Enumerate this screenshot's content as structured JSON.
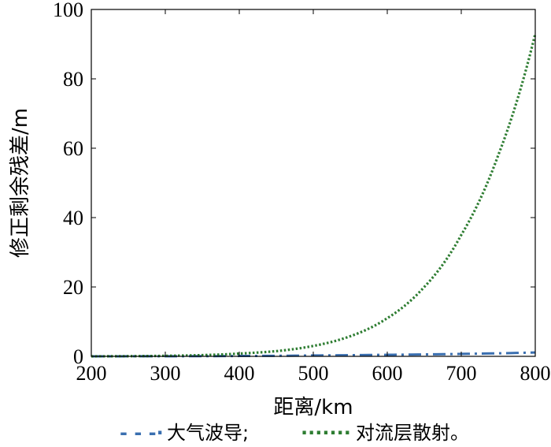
{
  "chart_data": {
    "type": "line",
    "xlabel": "距离/km",
    "ylabel": "修正剩余残差/m",
    "xlim": [
      200,
      800
    ],
    "ylim": [
      0,
      100
    ],
    "xticks": [
      "200",
      "300",
      "400",
      "500",
      "600",
      "700",
      "800"
    ],
    "yticks": [
      "0",
      "20",
      "40",
      "60",
      "80",
      "100"
    ],
    "grid": false,
    "legend_position": "bottom",
    "series": [
      {
        "name": "大气波导;",
        "legend_marker": "- - -·",
        "style": "dash-dot",
        "color": "#3a6fb0",
        "x": [
          200,
          300,
          400,
          500,
          600,
          700,
          800
        ],
        "y": [
          0.0,
          0.03,
          0.1,
          0.25,
          0.45,
          0.7,
          1.1
        ]
      },
      {
        "name": "对流层散射。",
        "legend_marker": "·······",
        "style": "dotted",
        "color": "#2e7d32",
        "x": [
          200,
          250,
          300,
          350,
          400,
          450,
          500,
          550,
          600,
          650,
          700,
          750,
          800
        ],
        "y": [
          0.0,
          0.05,
          0.15,
          0.35,
          0.8,
          1.5,
          3.0,
          5.8,
          11.0,
          20.0,
          35.0,
          58.0,
          93.0
        ]
      }
    ]
  }
}
